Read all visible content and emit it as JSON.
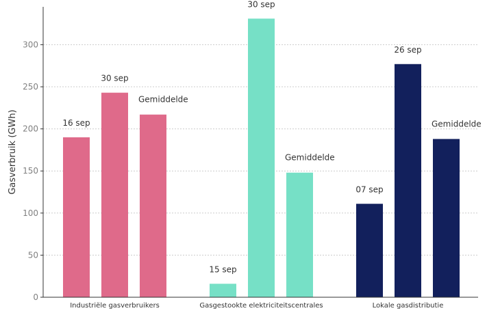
{
  "chart_data": {
    "type": "bar",
    "ylabel": "Gasverbruik (GWh)",
    "xlabel": "",
    "ylim": [
      0,
      345
    ],
    "yticks": [
      0,
      50,
      100,
      150,
      200,
      250,
      300
    ],
    "grid": true,
    "groups": [
      {
        "category": "Industriële gasverbruikers",
        "color": "#df6a8a",
        "bars": [
          {
            "label": "16 sep",
            "value": 190
          },
          {
            "label": "30 sep",
            "value": 243
          },
          {
            "label": "Gemiddelde",
            "value": 217
          }
        ]
      },
      {
        "category": "Gasgestookte elektriciteitscentrales",
        "color": "#76e0c6",
        "bars": [
          {
            "label": "15 sep",
            "value": 16
          },
          {
            "label": "30 sep",
            "value": 331
          },
          {
            "label": "Gemiddelde",
            "value": 148
          }
        ]
      },
      {
        "category": "Lokale gasdistributie",
        "color": "#12205c",
        "bars": [
          {
            "label": "07 sep",
            "value": 111
          },
          {
            "label": "26 sep",
            "value": 277
          },
          {
            "label": "Gemiddelde",
            "value": 188
          }
        ]
      }
    ]
  }
}
